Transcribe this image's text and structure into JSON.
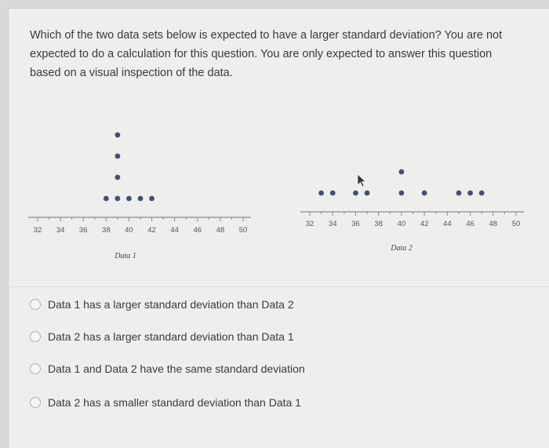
{
  "question": "Which of the two data sets below is expected to have a larger standard deviation? You are not expected to do a calculation for this question. You are only expected to answer this question based on a visual inspection of the data.",
  "colors": {
    "dot": "#3f5179",
    "axis": "#8a8a8a",
    "radio_border": "#9fb3c8"
  },
  "icons": {
    "radio": "radio-button-unselected-icon",
    "cursor": "mouse-pointer-icon"
  },
  "chart_data": [
    {
      "type": "scatter",
      "title": "",
      "xlabel": "Data 1",
      "ylabel": "",
      "ticks": [
        32,
        34,
        36,
        38,
        40,
        42,
        44,
        46,
        48,
        50
      ],
      "xlim": [
        32,
        50
      ],
      "points": [
        {
          "x": 38,
          "count": 1
        },
        {
          "x": 39,
          "count": 4
        },
        {
          "x": 40,
          "count": 1
        },
        {
          "x": 41,
          "count": 1
        },
        {
          "x": 42,
          "count": 1
        }
      ],
      "dot_plot_stacks": [
        {
          "x": 38,
          "stack": 1
        },
        {
          "x": 39,
          "stack": 4
        },
        {
          "x": 40,
          "stack": 1
        },
        {
          "x": 41,
          "stack": 1
        },
        {
          "x": 42,
          "stack": 1
        }
      ]
    },
    {
      "type": "scatter",
      "title": "",
      "xlabel": "Data 2",
      "ylabel": "",
      "ticks": [
        32,
        34,
        36,
        38,
        40,
        42,
        44,
        46,
        48,
        50
      ],
      "xlim": [
        32,
        50
      ],
      "dot_plot_stacks": [
        {
          "x": 33,
          "stack": 1
        },
        {
          "x": 34,
          "stack": 1
        },
        {
          "x": 36,
          "stack": 1
        },
        {
          "x": 37,
          "stack": 1
        },
        {
          "x": 40,
          "stack": 2
        },
        {
          "x": 42,
          "stack": 1
        },
        {
          "x": 45,
          "stack": 1
        },
        {
          "x": 46,
          "stack": 1
        },
        {
          "x": 47,
          "stack": 1
        }
      ]
    }
  ],
  "options": [
    "Data 1 has a larger standard deviation than Data 2",
    "Data 2 has a larger standard deviation than Data 1",
    "Data 1 and Data 2 have the same standard deviation",
    "Data 2 has a smaller standard deviation than Data 1"
  ]
}
